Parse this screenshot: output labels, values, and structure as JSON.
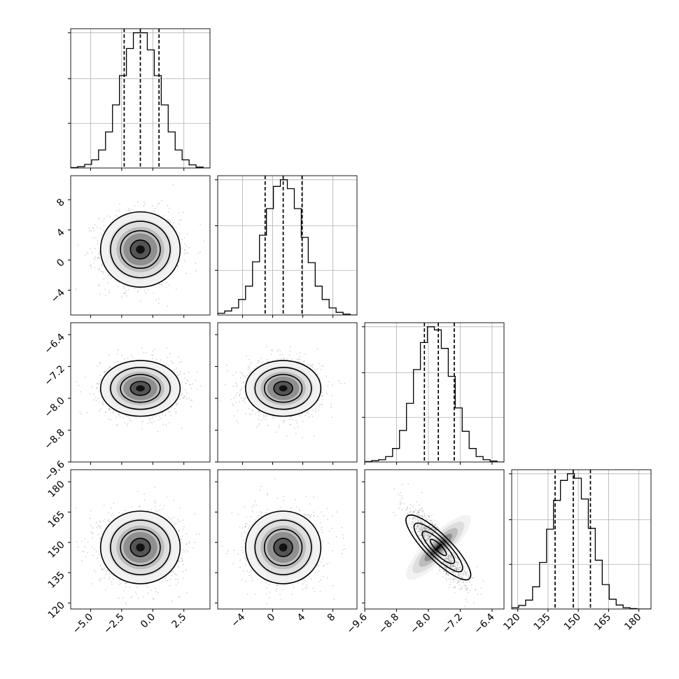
{
  "chart_data": {
    "type": "corner",
    "dims": 4,
    "grid": true,
    "colors": {
      "line": "#000000",
      "grid": "#b0b0b0",
      "points": "#808080",
      "background": "#ffffff"
    },
    "ranges": [
      [
        -6.6,
        4.6
      ],
      [
        -7.3,
        11.2
      ],
      [
        -9.6,
        -6.1
      ],
      [
        117,
        186
      ]
    ],
    "ticks": [
      {
        "values": [
          -5.0,
          -2.5,
          0.0,
          2.5
        ],
        "labels": [
          "−5.0",
          "−2.5",
          "0.0",
          "2.5"
        ]
      },
      {
        "values": [
          -4,
          0,
          4,
          8
        ],
        "labels": [
          "−4",
          "0",
          "4",
          "8"
        ]
      },
      {
        "values": [
          -9.6,
          -8.8,
          -8.0,
          -7.2,
          -6.4
        ],
        "labels": [
          "−9.6",
          "−8.8",
          "−8.0",
          "−7.2",
          "−6.4"
        ]
      },
      {
        "values": [
          120,
          135,
          150,
          165,
          180
        ],
        "labels": [
          "120",
          "135",
          "150",
          "165",
          "180"
        ]
      }
    ],
    "means": [
      -1.0,
      1.4,
      -7.75,
      147.5
    ],
    "sigmas": [
      1.6,
      2.5,
      0.35,
      9.0
    ],
    "quantiles": [
      [
        -2.3,
        -1.0,
        0.5
      ],
      [
        -1.0,
        1.4,
        3.9
      ],
      [
        -8.1,
        -7.75,
        -7.35
      ],
      [
        138.5,
        147.5,
        156.0
      ]
    ],
    "correlations": {
      "2-3": -0.85
    },
    "histograms": [
      {
        "edges": [
          -6.6,
          -6.04,
          -5.48,
          -4.92,
          -4.36,
          -3.8,
          -3.24,
          -2.68,
          -2.12,
          -1.56,
          -1.0,
          -0.44,
          0.12,
          0.68,
          1.24,
          1.8,
          2.36,
          2.92,
          3.48,
          4.04,
          4.6
        ],
        "counts": [
          1,
          3,
          8,
          18,
          40,
          80,
          140,
          205,
          265,
          300,
          300,
          262,
          205,
          140,
          80,
          40,
          18,
          7,
          2,
          0
        ]
      },
      {
        "edges": [
          -7.3,
          -6.375,
          -5.45,
          -4.525,
          -3.6,
          -2.675,
          -1.75,
          -0.825,
          0.1,
          1.025,
          1.95,
          2.875,
          3.8,
          4.725,
          5.65,
          6.575,
          7.5,
          8.425,
          9.35,
          10.275,
          11.2
        ],
        "counts": [
          4,
          9,
          16,
          35,
          65,
          120,
          180,
          240,
          290,
          305,
          285,
          240,
          175,
          118,
          65,
          35,
          16,
          6,
          2,
          0
        ]
      },
      {
        "edges": [
          -9.6,
          -9.425,
          -9.25,
          -9.075,
          -8.9,
          -8.725,
          -8.55,
          -8.375,
          -8.2,
          -8.025,
          -7.85,
          -7.675,
          -7.5,
          -7.325,
          -7.15,
          -6.975,
          -6.8,
          -6.625,
          -6.45,
          -6.275,
          -6.1
        ],
        "counts": [
          1,
          3,
          5,
          12,
          30,
          70,
          130,
          205,
          265,
          300,
          293,
          252,
          190,
          120,
          68,
          30,
          12,
          5,
          2,
          0
        ]
      },
      {
        "edges": [
          117,
          120.45,
          123.9,
          127.35,
          130.8,
          134.25,
          137.7,
          141.15,
          144.6,
          148.05,
          151.5,
          154.95,
          158.4,
          161.85,
          165.3,
          168.75,
          172.2,
          175.65,
          179.1,
          182.55,
          186
        ],
        "counts": [
          3,
          8,
          20,
          50,
          105,
          180,
          245,
          290,
          305,
          295,
          248,
          182,
          110,
          55,
          22,
          9,
          3,
          1,
          0,
          0
        ]
      }
    ]
  }
}
